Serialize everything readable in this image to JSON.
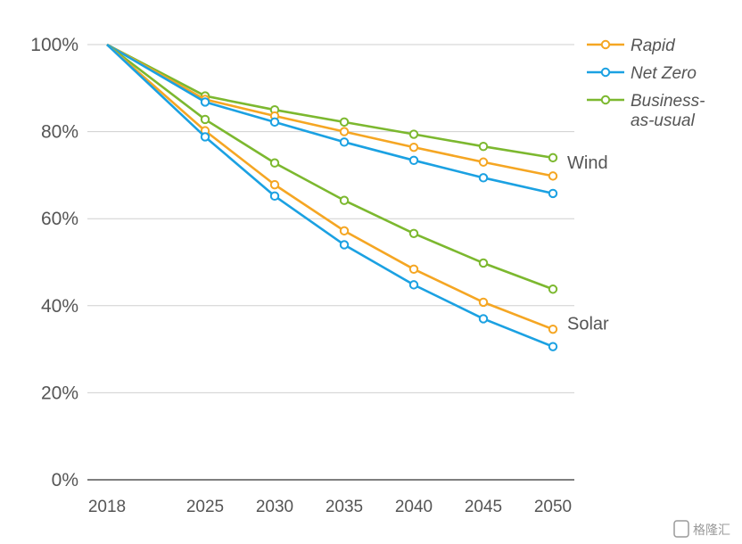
{
  "chart_data": {
    "type": "line",
    "title": "",
    "xlabel": "",
    "ylabel": "",
    "x": [
      2018,
      2025,
      2030,
      2035,
      2040,
      2045,
      2050
    ],
    "x_tick_labels": [
      "2018",
      "2025",
      "2030",
      "2035",
      "2040",
      "2045",
      "2050"
    ],
    "y_ticks": [
      0,
      20,
      40,
      60,
      80,
      100
    ],
    "y_tick_labels": [
      "0%",
      "20%",
      "40%",
      "60%",
      "80%",
      "100%"
    ],
    "ylim": [
      0,
      100
    ],
    "grid": "horizontal",
    "legend_position": "top-right",
    "legend": [
      {
        "label_line1": "Rapid",
        "label_line2": "",
        "color": "#f5a623"
      },
      {
        "label_line1": "Net Zero",
        "label_line2": "",
        "color": "#1ba1e2"
      },
      {
        "label_line1": "Business-",
        "label_line2": "as-usual",
        "color": "#7cb82f"
      }
    ],
    "groups": [
      {
        "label": "Wind",
        "label_anchor_value": 73
      },
      {
        "label": "Solar",
        "label_anchor_value": 36
      }
    ],
    "series": [
      {
        "scenario": "Business-as-usual",
        "group": "Wind",
        "color": "#7cb82f",
        "values": [
          100,
          88.2,
          85.0,
          82.2,
          79.4,
          76.6,
          74.0
        ]
      },
      {
        "scenario": "Rapid",
        "group": "Wind",
        "color": "#f5a623",
        "values": [
          100,
          87.4,
          83.6,
          80.0,
          76.4,
          73.0,
          69.8
        ]
      },
      {
        "scenario": "Net Zero",
        "group": "Wind",
        "color": "#1ba1e2",
        "values": [
          100,
          86.8,
          82.2,
          77.6,
          73.4,
          69.4,
          65.8
        ]
      },
      {
        "scenario": "Business-as-usual",
        "group": "Solar",
        "color": "#7cb82f",
        "values": [
          100,
          82.8,
          72.8,
          64.2,
          56.6,
          49.8,
          43.8
        ]
      },
      {
        "scenario": "Rapid",
        "group": "Solar",
        "color": "#f5a623",
        "values": [
          100,
          80.2,
          67.8,
          57.2,
          48.4,
          40.8,
          34.6
        ]
      },
      {
        "scenario": "Net Zero",
        "group": "Solar",
        "color": "#1ba1e2",
        "values": [
          100,
          78.8,
          65.2,
          54.0,
          44.8,
          37.0,
          30.6
        ]
      }
    ]
  },
  "watermark": {
    "text": "格隆汇"
  }
}
